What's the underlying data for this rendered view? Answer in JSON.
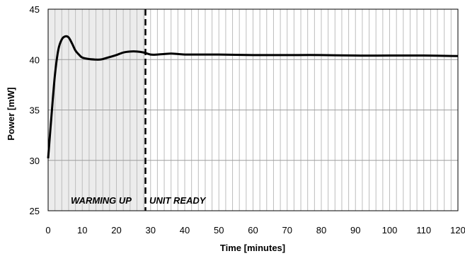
{
  "chart_data": {
    "type": "line",
    "title": "",
    "xlabel": "Time [minutes]",
    "ylabel": "Power  [mW]",
    "xlim": [
      0,
      120
    ],
    "ylim": [
      25,
      45
    ],
    "x_ticks": [
      0,
      10,
      20,
      30,
      40,
      50,
      60,
      70,
      80,
      90,
      100,
      110,
      120
    ],
    "y_ticks": [
      25,
      30,
      35,
      40,
      45
    ],
    "grid": "vertical lines every 2 minutes, horizontal lines every 5 mW",
    "series": [
      {
        "color": "#000000",
        "x": [
          0,
          1,
          2,
          3,
          4,
          5,
          6,
          7,
          8,
          9,
          10,
          12,
          14,
          15,
          16,
          18,
          20,
          22,
          24,
          26,
          28,
          30,
          32,
          34,
          36,
          38,
          40,
          45,
          50,
          60,
          70,
          80,
          90,
          100,
          110,
          120
        ],
        "y": [
          30.2,
          34.5,
          38.5,
          41.0,
          42.0,
          42.3,
          42.2,
          41.6,
          40.9,
          40.5,
          40.2,
          40.05,
          40.0,
          40.0,
          40.05,
          40.25,
          40.45,
          40.7,
          40.8,
          40.8,
          40.7,
          40.5,
          40.5,
          40.55,
          40.6,
          40.55,
          40.5,
          40.5,
          40.5,
          40.45,
          40.45,
          40.45,
          40.4,
          40.4,
          40.4,
          40.35
        ]
      }
    ],
    "shaded_region": {
      "x_start": 0,
      "x_end": 28.5,
      "color": "#ececec"
    },
    "vertical_marker": {
      "x": 28.5,
      "style": "dashed"
    },
    "annotations": [
      "WARMING UP",
      "UNIT READY"
    ]
  }
}
